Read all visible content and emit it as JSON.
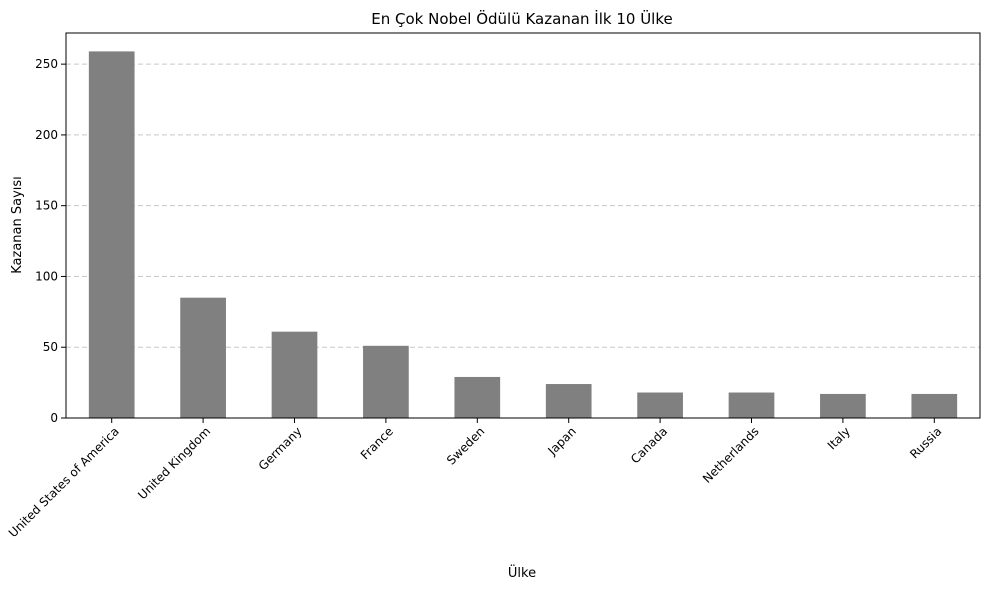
{
  "chart_data": {
    "type": "bar",
    "title": "En Çok Nobel Ödülü Kazanan İlk 10 Ülke",
    "xlabel": "Ülke",
    "ylabel": "Kazanan Sayısı",
    "categories": [
      "United States of America",
      "United Kingdom",
      "Germany",
      "France",
      "Sweden",
      "Japan",
      "Canada",
      "Netherlands",
      "Italy",
      "Russia"
    ],
    "values": [
      259,
      85,
      61,
      51,
      29,
      24,
      18,
      18,
      17,
      17
    ],
    "ylim": [
      0,
      272
    ],
    "yticks": [
      0,
      50,
      100,
      150,
      200,
      250
    ],
    "grid": "y-dashed",
    "legend": "none",
    "colors": {
      "bar": "#808080",
      "grid": "#c8c8c8",
      "axis": "#000000"
    }
  }
}
